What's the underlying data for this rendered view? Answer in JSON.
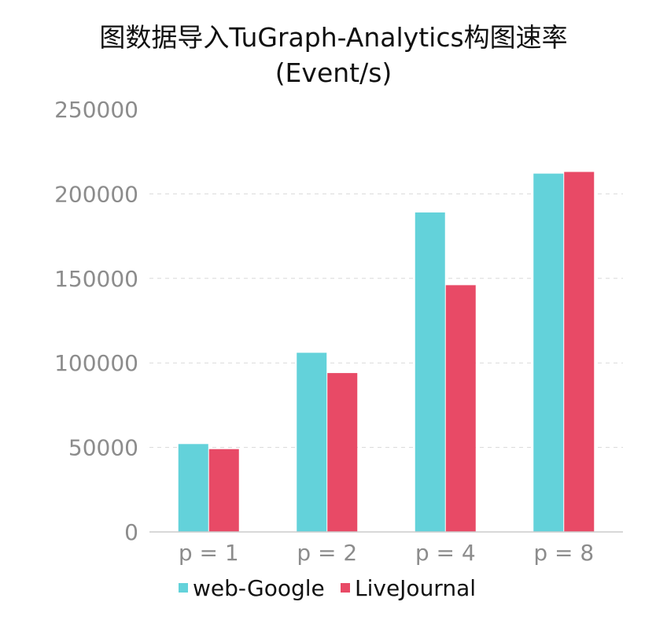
{
  "chart_data": {
    "type": "bar",
    "title_lines": [
      "图数据导入TuGraph-Analytics构图速率",
      "(Event/s)"
    ],
    "categories": [
      "p = 1",
      "p = 2",
      "p = 4",
      "p = 8"
    ],
    "series": [
      {
        "name": "web-Google",
        "color": "#63d2da",
        "values": [
          52000,
          106000,
          189000,
          212000
        ]
      },
      {
        "name": "LiveJournal",
        "color": "#e84a66",
        "values": [
          49000,
          94000,
          146000,
          213000
        ]
      }
    ],
    "y_ticks": [
      "0",
      "50000",
      "100000",
      "150000",
      "200000",
      "250000"
    ],
    "ylim": [
      0,
      250000
    ],
    "grid": true,
    "legend_position": "bottom-center",
    "xlabel": "",
    "ylabel": ""
  }
}
